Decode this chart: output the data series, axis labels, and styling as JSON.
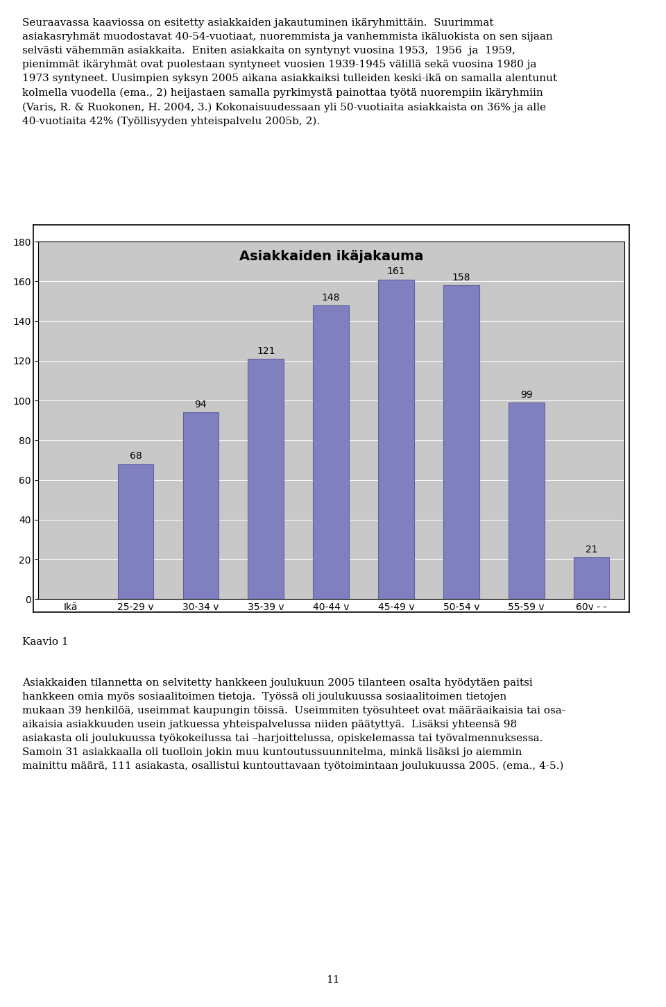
{
  "title": "Asiakkaiden ikäjakauma",
  "categories": [
    "Ikä",
    "25-29 v",
    "30-34 v",
    "35-39 v",
    "40-44 v",
    "45-49 v",
    "50-54 v",
    "55-59 v",
    "60v - -"
  ],
  "values": [
    0,
    68,
    94,
    121,
    148,
    161,
    158,
    99,
    21
  ],
  "bar_color": "#8080C0",
  "bar_edge_color": "#6060A0",
  "plot_bg_color": "#C8C8C8",
  "fig_bg_color": "#FFFFFF",
  "ylim": [
    0,
    180
  ],
  "yticks": [
    0,
    20,
    40,
    60,
    80,
    100,
    120,
    140,
    160,
    180
  ],
  "title_fontsize": 14,
  "tick_fontsize": 10,
  "value_fontsize": 10,
  "caption": "Kaavio 1",
  "caption_fontsize": 11,
  "text_fontsize": 11,
  "para1": "Seuraavassa kaaviossa on esitetty asiakkaiden jakautuminen ikäryhmittäin.  Suurimmat\nasiakasryhmät muodostavat 40-54-vuotiaat, nuoremmista ja vanhemmista ikäluokista on sen sijaan\nselvästi vähemmän asiakkaita.  Eniten asiakkaita on syntynyt vuosina 1953,  1956  ja  1959,\npienimmät ikäryhmät ovat puolestaan syntyneet vuosien 1939-1945 välillä sekä vuosina 1980 ja\n1973 syntyneet. Uusimpien syksyn 2005 aikana asiakkaiksi tulleiden keski-ikä on samalla alentunut\nkolmella vuodella (ema., 2) heijastaen samalla pyrkimystä painottaa työtä nuorempiin ikäryhmiin\n(Varis, R. & Ruokonen, H. 2004, 3.) Kokonaisuudessaan yli 50-vuotiaita asiakkaista on 36% ja alle\n40-vuotiaita 42% (Työllisyyden yhteispalvelu 2005b, 2).",
  "para2": "Asiakkaiden tilannetta on selvitetty hankkeen joulukuun 2005 tilanteen osalta hyödytäen paitsi\nhankkeen omia myös sosiaalitoimen tietoja.  Työssä oli joulukuussa sosiaalitoimen tietojen\nmukaan 39 henkilöä, useimmat kaupungin töissä.  Useimmiten työsuhteet ovat määräaikaisia tai osa-\naikaisia asiakkuuden usein jatkuessa yhteispalvelussa niiden päätyttyä.  Lisäksi yhteensä 98\nasiakasta oli joulukuussa työkokeilussa tai –harjoittelussa, opiskelemassa tai työvalmennuksessa.\nSamoin 31 asiakkaalla oli tuolloin jokin muu kuntoutussuunnitelma, minkä lisäksi jo aiemmin\nmainittu määrä, 111 asiakasta, osallistui kuntouttavaan työtoimintaan joulukuussa 2005. (ema., 4-5.)",
  "page_number": "11"
}
